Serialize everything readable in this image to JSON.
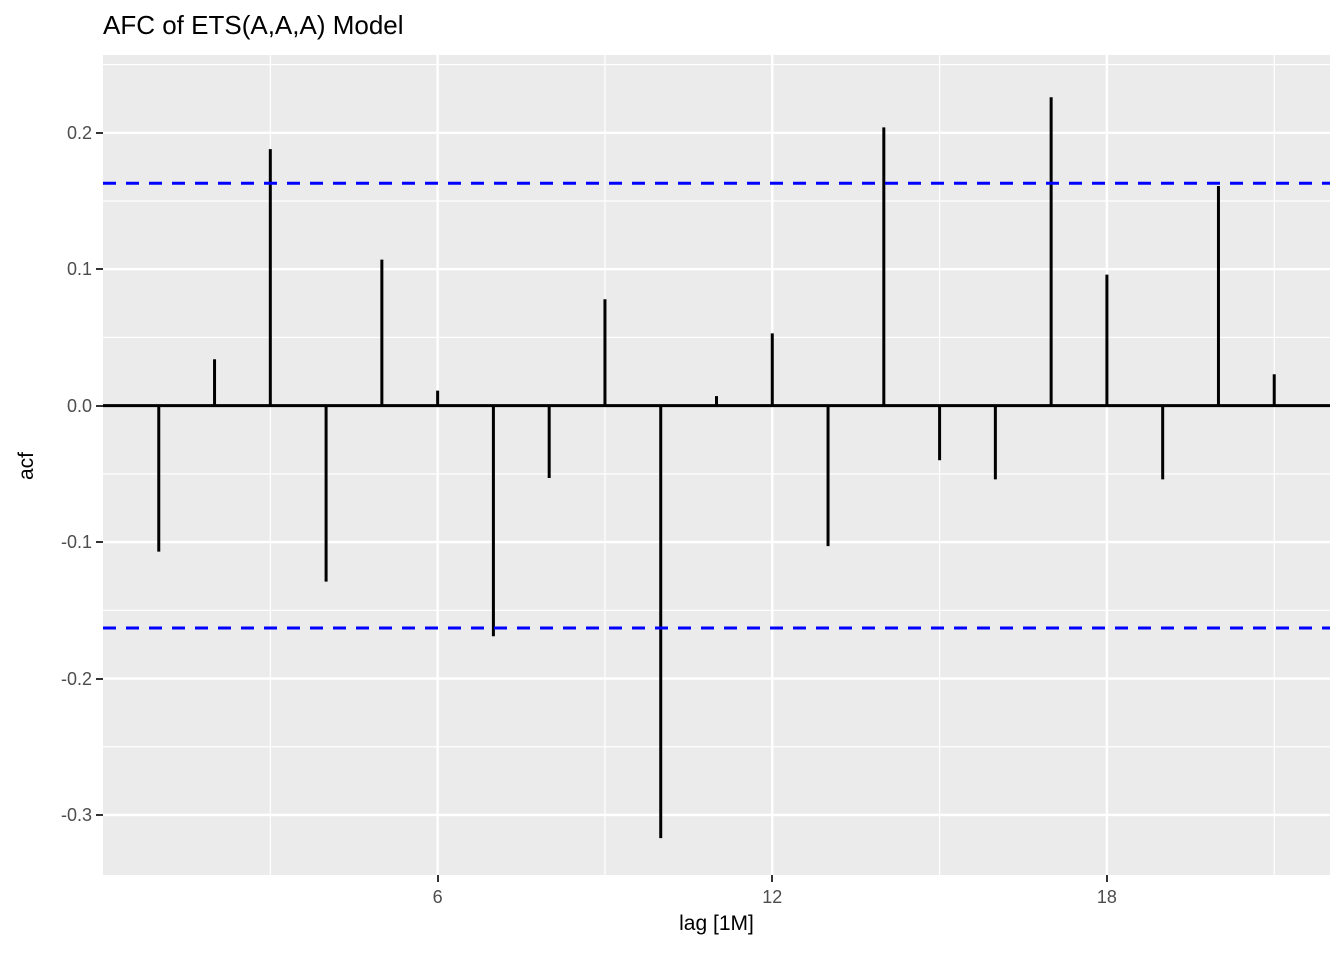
{
  "figure": {
    "title": "AFC of ETS(A,A,A) Model"
  },
  "chart_data": {
    "type": "bar",
    "subtype": "acf-stem-plot",
    "title": "AFC of ETS(A,A,A) Model",
    "xlabel": "lag [1M]",
    "ylabel": "acf",
    "x": [
      1,
      2,
      3,
      4,
      5,
      6,
      7,
      8,
      9,
      10,
      11,
      12,
      13,
      14,
      15,
      16,
      17,
      18,
      19,
      20,
      21
    ],
    "values": [
      -0.107,
      0.034,
      0.188,
      -0.129,
      0.107,
      0.011,
      -0.169,
      -0.053,
      0.078,
      -0.317,
      0.007,
      0.053,
      -0.103,
      0.204,
      -0.04,
      -0.054,
      0.226,
      0.096,
      -0.054,
      0.161,
      0.023
    ],
    "confidence_bounds": {
      "upper": 0.163,
      "lower": -0.163,
      "line_style": "dashed"
    },
    "xlim": [
      0,
      22
    ],
    "ylim": [
      -0.344,
      0.257
    ],
    "x_ticks": [
      6,
      12,
      18
    ],
    "x_tick_labels": [
      "6",
      "12",
      "18"
    ],
    "x_minor_gridlines": [
      3,
      9,
      15,
      21
    ],
    "y_ticks": [
      0.2,
      0.1,
      0.0,
      -0.1,
      -0.2,
      -0.3
    ],
    "y_tick_labels": [
      "0.2",
      "0.1",
      "0.0",
      "-0.1",
      "-0.2",
      "-0.3"
    ],
    "y_minor_gridlines": [
      0.25,
      0.15,
      0.05,
      -0.05,
      -0.15,
      -0.25
    ],
    "grid": true,
    "legend": "none",
    "colors": {
      "bar": "#000000",
      "zero_line": "#000000",
      "conf_line": "#0000FF",
      "panel_bg": "#EBEBEB",
      "grid": "#FFFFFF",
      "tick_label": "#4D4D4D",
      "tick_mark": "#333333",
      "text": "#000000",
      "page_bg": "#FFFFFF"
    }
  }
}
